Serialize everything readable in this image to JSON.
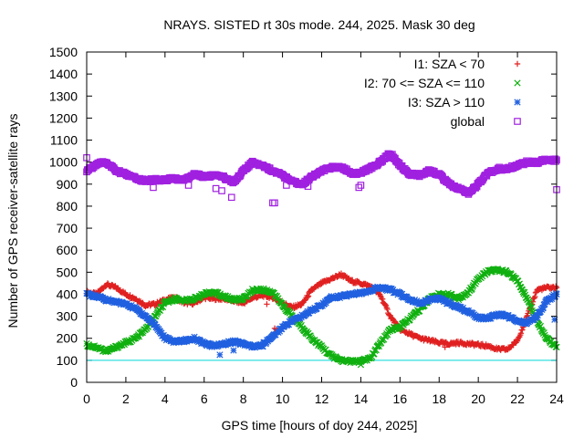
{
  "chart_data": {
    "type": "scatter",
    "title": "NRAYS. SISTED rt 30s mode. 244, 2025. Mask 30 deg",
    "xlabel": "GPS time [hours of doy 244, 2025]",
    "ylabel": "Number of GPS receiver-satellite rays",
    "xlim": [
      0,
      24
    ],
    "ylim": [
      0,
      1500
    ],
    "xticks": [
      0,
      2,
      4,
      6,
      8,
      10,
      12,
      14,
      16,
      18,
      20,
      22,
      24
    ],
    "yticks": [
      0,
      100,
      200,
      300,
      400,
      500,
      600,
      700,
      800,
      900,
      1000,
      1100,
      1200,
      1300,
      1400,
      1500
    ],
    "legend_position": "top-right",
    "reference_line": {
      "y": 100,
      "color": "#00d6d6"
    },
    "series": [
      {
        "name": "I1: SZA < 70",
        "marker": "+",
        "color": "#e02020",
        "x": [
          0,
          0.5,
          1,
          1.5,
          2,
          2.5,
          3,
          3.5,
          4,
          4.5,
          5,
          5.5,
          6,
          6.5,
          7,
          7.5,
          8,
          8.5,
          9,
          9.5,
          10,
          10.5,
          11,
          11.5,
          12,
          12.5,
          13,
          13.5,
          14,
          14.5,
          15,
          15.5,
          16,
          16.5,
          17,
          17.5,
          18,
          18.5,
          19,
          19.5,
          20,
          20.5,
          21,
          21.5,
          22,
          22.5,
          23,
          23.5,
          24
        ],
        "values": [
          410,
          400,
          445,
          430,
          400,
          380,
          350,
          355,
          375,
          385,
          360,
          360,
          385,
          380,
          380,
          370,
          360,
          385,
          395,
          385,
          360,
          340,
          355,
          420,
          450,
          470,
          490,
          460,
          450,
          435,
          395,
          300,
          240,
          220,
          200,
          190,
          180,
          175,
          180,
          175,
          170,
          165,
          150,
          150,
          190,
          300,
          420,
          430,
          430
        ]
      },
      {
        "name": "I2: 70 <= SZA <= 110",
        "marker": "x",
        "color": "#10b010",
        "x": [
          0,
          0.5,
          1,
          1.5,
          2,
          2.5,
          3,
          3.5,
          4,
          4.5,
          5,
          5.5,
          6,
          6.5,
          7,
          7.5,
          8,
          8.5,
          9,
          9.5,
          10,
          10.5,
          11,
          11.5,
          12,
          12.5,
          13,
          13.5,
          14,
          14.5,
          15,
          15.5,
          16,
          16.5,
          17,
          17.5,
          18,
          18.5,
          19,
          19.5,
          20,
          20.5,
          21,
          21.5,
          22,
          22.5,
          23,
          23.5,
          24
        ],
        "values": [
          170,
          160,
          140,
          160,
          180,
          200,
          240,
          300,
          360,
          380,
          370,
          380,
          400,
          410,
          390,
          375,
          380,
          420,
          420,
          410,
          350,
          300,
          250,
          200,
          160,
          120,
          100,
          95,
          95,
          110,
          180,
          240,
          250,
          290,
          330,
          380,
          400,
          400,
          380,
          410,
          470,
          505,
          510,
          500,
          460,
          380,
          280,
          200,
          160
        ]
      },
      {
        "name": "I3: SZA > 110",
        "marker": "*",
        "color": "#2060e0",
        "x": [
          0,
          0.5,
          1,
          1.5,
          2,
          2.5,
          3,
          3.5,
          4,
          4.5,
          5,
          5.5,
          6,
          6.5,
          7,
          7.5,
          8,
          8.5,
          9,
          9.5,
          10,
          10.5,
          11,
          11.5,
          12,
          12.5,
          13,
          13.5,
          14,
          14.5,
          15,
          15.5,
          16,
          16.5,
          17,
          17.5,
          18,
          18.5,
          19,
          19.5,
          20,
          20.5,
          21,
          21.5,
          22,
          22.5,
          23,
          23.5,
          24
        ],
        "values": [
          400,
          390,
          375,
          365,
          355,
          335,
          300,
          260,
          200,
          185,
          190,
          200,
          175,
          165,
          175,
          185,
          175,
          160,
          170,
          210,
          250,
          280,
          300,
          330,
          350,
          385,
          390,
          400,
          405,
          420,
          430,
          420,
          400,
          375,
          360,
          375,
          380,
          360,
          340,
          320,
          295,
          290,
          310,
          300,
          280,
          270,
          300,
          370,
          400
        ]
      },
      {
        "name": "global",
        "marker": "square",
        "color": "#a020e0",
        "x": [
          0,
          0.5,
          1,
          1.5,
          2,
          2.5,
          3,
          3.5,
          4,
          4.5,
          5,
          5.5,
          6,
          6.5,
          7,
          7.5,
          8,
          8.5,
          9,
          9.5,
          10,
          10.5,
          11,
          11.5,
          12,
          12.5,
          13,
          13.5,
          14,
          14.5,
          15,
          15.5,
          16,
          16.5,
          17,
          17.5,
          18,
          18.5,
          19,
          19.5,
          20,
          20.5,
          21,
          21.5,
          22,
          22.5,
          23,
          23.5,
          24
        ],
        "values": [
          960,
          990,
          1000,
          960,
          945,
          925,
          915,
          920,
          920,
          925,
          920,
          945,
          935,
          940,
          930,
          910,
          960,
          1000,
          985,
          960,
          940,
          910,
          900,
          935,
          960,
          975,
          980,
          950,
          950,
          975,
          1000,
          1040,
          985,
          945,
          940,
          960,
          945,
          900,
          880,
          860,
          900,
          950,
          970,
          970,
          985,
          1000,
          1000,
          1010,
          1010
        ]
      }
    ],
    "outliers": [
      {
        "series": "global",
        "x": 0,
        "y": 1020
      },
      {
        "series": "global",
        "x": 3.4,
        "y": 885
      },
      {
        "series": "global",
        "x": 5.2,
        "y": 895
      },
      {
        "series": "global",
        "x": 6.6,
        "y": 880
      },
      {
        "series": "global",
        "x": 6.9,
        "y": 870
      },
      {
        "series": "global",
        "x": 7.4,
        "y": 840
      },
      {
        "series": "global",
        "x": 9.5,
        "y": 815
      },
      {
        "series": "global",
        "x": 9.6,
        "y": 815
      },
      {
        "series": "global",
        "x": 10.2,
        "y": 895
      },
      {
        "series": "global",
        "x": 11.3,
        "y": 890
      },
      {
        "series": "global",
        "x": 13.9,
        "y": 885
      },
      {
        "series": "global",
        "x": 14.0,
        "y": 895
      },
      {
        "series": "global",
        "x": 24,
        "y": 875
      },
      {
        "series": "I1: SZA < 70",
        "x": 9.2,
        "y": 355
      },
      {
        "series": "I1: SZA < 70",
        "x": 9.6,
        "y": 245
      },
      {
        "series": "I1: SZA < 70",
        "x": 18.3,
        "y": 160
      },
      {
        "series": "I2: 70 <= SZA <= 110",
        "x": 14.0,
        "y": 80
      },
      {
        "series": "I3: SZA > 110",
        "x": 6.8,
        "y": 125
      },
      {
        "series": "I3: SZA > 110",
        "x": 7.5,
        "y": 145
      },
      {
        "series": "I3: SZA > 110",
        "x": 23.9,
        "y": 285
      }
    ]
  }
}
